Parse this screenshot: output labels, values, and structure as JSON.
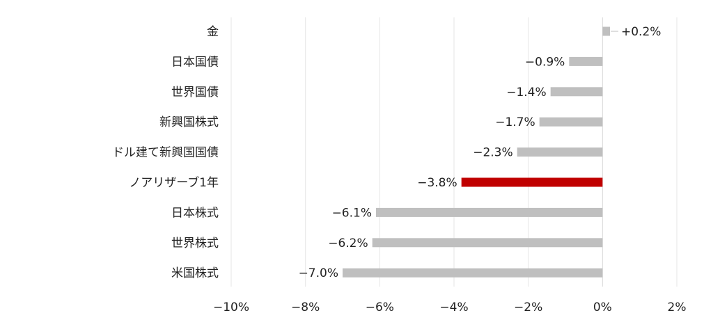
{
  "chart_data": {
    "type": "bar",
    "orientation": "horizontal",
    "categories": [
      "金",
      "日本国債",
      "世界国債",
      "新興国株式",
      "ドル建て新興国国債",
      "ノアリザーブ1年",
      "日本株式",
      "世界株式",
      "米国株式"
    ],
    "values": [
      0.2,
      -0.9,
      -1.4,
      -1.7,
      -2.3,
      -3.8,
      -6.1,
      -6.2,
      -7.0
    ],
    "data_labels": [
      "+0.2%",
      "−0.9%",
      "−1.4%",
      "−1.7%",
      "−2.3%",
      "−3.8%",
      "−6.1%",
      "−6.2%",
      "−7.0%"
    ],
    "xlim": [
      -10,
      2
    ],
    "xticks": [
      -10,
      -8,
      -6,
      -4,
      -2,
      0,
      2
    ],
    "xtick_labels": [
      "−10%",
      "−8%",
      "−6%",
      "−4%",
      "−2%",
      "0%",
      "2%"
    ],
    "grid": "vertical",
    "highlight_index": 5,
    "colors": {
      "default": "#bfbfbf",
      "highlight": "#c00000",
      "grid": "#e6e6e6",
      "text": "#222222"
    }
  }
}
